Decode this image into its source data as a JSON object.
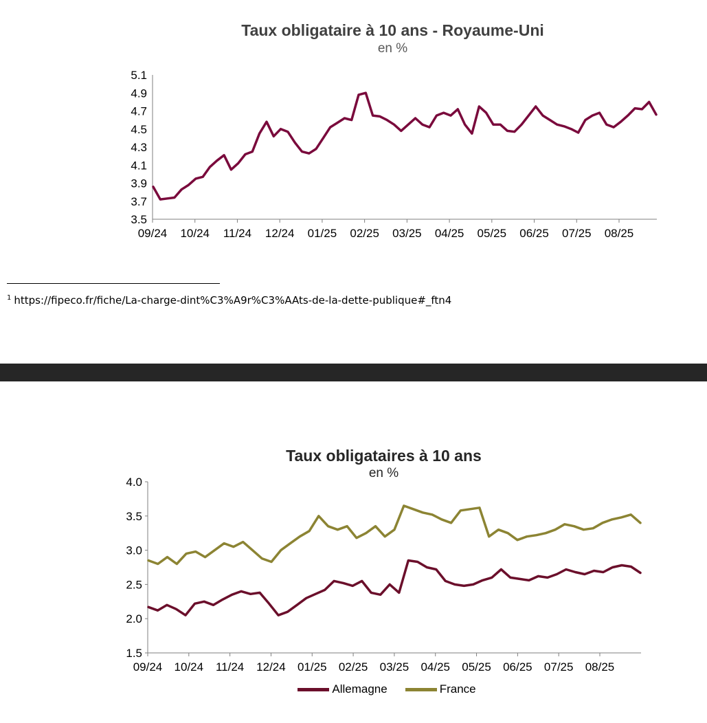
{
  "colors": {
    "uk": "#7a0a3c",
    "allemagne": "#6b0f2b",
    "france": "#8c8433",
    "band": "#262626"
  },
  "footnote": {
    "marker": "1",
    "text": "https://fipeco.fr/fiche/La-charge-dint%C3%A9r%C3%AAts-de-la-dette-publique#_ftn4"
  },
  "chart_data": [
    {
      "type": "line",
      "title": "Taux obligataire à 10 ans - Royaume-Uni",
      "subtitle": "en %",
      "xlabel": "",
      "ylabel": "",
      "ylim": [
        3.5,
        5.1
      ],
      "yticks": [
        "3.5",
        "3.7",
        "3.9",
        "4.1",
        "4.3",
        "4.5",
        "4.7",
        "4.9",
        "5.1"
      ],
      "xticks": [
        "09/24",
        "10/24",
        "11/24",
        "12/24",
        "01/25",
        "02/25",
        "03/25",
        "04/25",
        "05/25",
        "06/25",
        "07/25",
        "08/25"
      ],
      "grid": false,
      "series": [
        {
          "values": [
            3.86,
            3.72,
            3.73,
            3.74,
            3.83,
            3.88,
            3.95,
            3.97,
            4.08,
            4.15,
            4.21,
            4.05,
            4.12,
            4.22,
            4.25,
            4.45,
            4.58,
            4.42,
            4.5,
            4.47,
            4.35,
            4.25,
            4.23,
            4.28,
            4.4,
            4.52,
            4.57,
            4.62,
            4.6,
            4.88,
            4.9,
            4.65,
            4.64,
            4.6,
            4.55,
            4.48,
            4.55,
            4.62,
            4.55,
            4.52,
            4.65,
            4.68,
            4.65,
            4.72,
            4.55,
            4.45,
            4.75,
            4.68,
            4.55,
            4.55,
            4.48,
            4.47,
            4.55,
            4.65,
            4.75,
            4.65,
            4.6,
            4.55,
            4.53,
            4.5,
            4.46,
            4.6,
            4.65,
            4.68,
            4.55,
            4.52,
            4.58,
            4.65,
            4.73,
            4.72,
            4.8,
            4.66
          ]
        }
      ]
    },
    {
      "type": "line",
      "title": "Taux obligataires à 10 ans",
      "subtitle": "en %",
      "xlabel": "",
      "ylabel": "",
      "ylim": [
        1.5,
        4.0
      ],
      "yticks": [
        "1.5",
        "2.0",
        "2.5",
        "3.0",
        "3.5",
        "4.0"
      ],
      "xticks": [
        "09/24",
        "10/24",
        "11/24",
        "12/24",
        "01/25",
        "02/25",
        "03/25",
        "04/25",
        "05/25",
        "06/25",
        "07/25",
        "08/25"
      ],
      "grid": false,
      "legend": "bottom",
      "series": [
        {
          "name": "Allemagne",
          "values": [
            2.17,
            2.12,
            2.2,
            2.14,
            2.05,
            2.22,
            2.25,
            2.2,
            2.28,
            2.35,
            2.4,
            2.36,
            2.38,
            2.22,
            2.05,
            2.1,
            2.2,
            2.3,
            2.36,
            2.42,
            2.55,
            2.52,
            2.48,
            2.55,
            2.38,
            2.35,
            2.5,
            2.38,
            2.85,
            2.83,
            2.75,
            2.72,
            2.55,
            2.5,
            2.48,
            2.5,
            2.56,
            2.6,
            2.72,
            2.6,
            2.58,
            2.56,
            2.62,
            2.6,
            2.65,
            2.72,
            2.68,
            2.65,
            2.7,
            2.68,
            2.75,
            2.78,
            2.76,
            2.67
          ]
        },
        {
          "name": "France",
          "values": [
            2.85,
            2.8,
            2.9,
            2.8,
            2.95,
            2.98,
            2.9,
            3.0,
            3.1,
            3.05,
            3.12,
            3.0,
            2.88,
            2.83,
            3.0,
            3.1,
            3.2,
            3.28,
            3.5,
            3.35,
            3.3,
            3.35,
            3.18,
            3.25,
            3.35,
            3.2,
            3.3,
            3.65,
            3.6,
            3.55,
            3.52,
            3.45,
            3.4,
            3.58,
            3.6,
            3.62,
            3.2,
            3.3,
            3.25,
            3.15,
            3.2,
            3.22,
            3.25,
            3.3,
            3.38,
            3.35,
            3.3,
            3.32,
            3.4,
            3.45,
            3.48,
            3.52,
            3.4
          ]
        }
      ]
    }
  ]
}
